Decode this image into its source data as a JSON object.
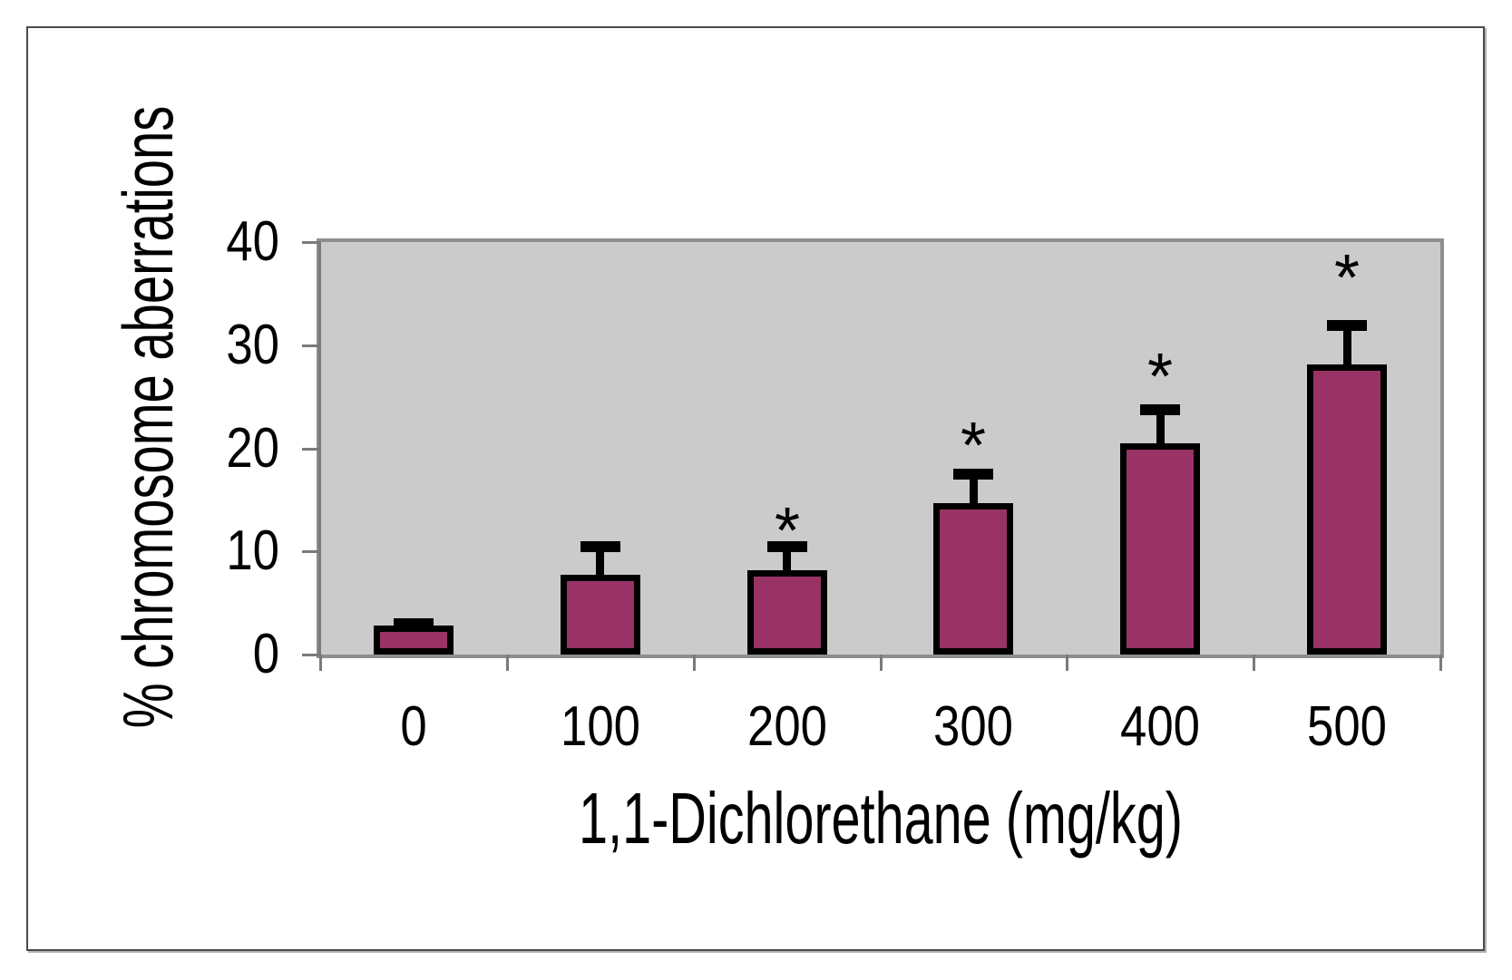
{
  "figure": {
    "background": "#FFFFFF",
    "border_color": "#4A4A4A"
  },
  "chart_data": {
    "type": "bar",
    "title": "",
    "xlabel": "1,1-Dichlorethane (mg/kg)",
    "ylabel": "% chromosome aberrations",
    "categories": [
      "0",
      "100",
      "200",
      "300",
      "400",
      "500"
    ],
    "values": [
      2.8,
      7.7,
      8.2,
      14.7,
      20.5,
      28.1
    ],
    "error_bar_top": [
      3.0,
      10.5,
      10.5,
      17.5,
      23.7,
      31.9
    ],
    "significant": [
      false,
      false,
      true,
      true,
      true,
      true
    ],
    "significance_marker": "*",
    "marker_y": [
      null,
      null,
      13.7,
      22.0,
      28.7,
      38.2
    ],
    "ylim": [
      0,
      40
    ],
    "yticks": [
      "0",
      "10",
      "20",
      "30",
      "40"
    ],
    "grid": false,
    "legend": null,
    "bar_fill": "#993366",
    "bar_stroke": "#000000",
    "plot_background": "#CBCBCB",
    "plot_border": "#8E8E8E",
    "axis_line_color": "#7A7A7A",
    "text_color": "#000000"
  }
}
